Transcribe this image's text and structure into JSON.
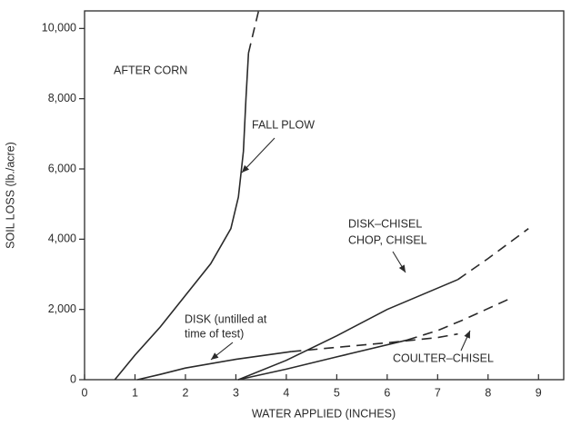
{
  "chart_data": {
    "type": "line",
    "x_label": "WATER APPLIED (INCHES)",
    "y_label": "SOIL LOSS (lb./acre)",
    "xlim": [
      0,
      9.5
    ],
    "ylim": [
      0,
      10500
    ],
    "xticks": [
      0,
      1,
      2,
      3,
      4,
      5,
      6,
      7,
      8,
      9
    ],
    "yticks": [
      0,
      {
        "value": 2000,
        "label": "2,000"
      },
      {
        "value": 4000,
        "label": "4,000"
      },
      {
        "value": 6000,
        "label": "6,000"
      },
      {
        "value": 8000,
        "label": "8,000"
      },
      {
        "value": 10000,
        "label": "10,000"
      }
    ],
    "color": "#2a2a2a",
    "series": [
      {
        "name": "FALL PLOW",
        "solid": {
          "x": [
            0.6,
            1.0,
            1.5,
            2.0,
            2.5,
            2.9,
            3.05,
            3.15,
            3.2,
            3.25
          ],
          "values": [
            0,
            700,
            1500,
            2400,
            3300,
            4300,
            5200,
            6500,
            8000,
            9300
          ]
        },
        "dashed": {
          "x": [
            3.25,
            3.35,
            3.45
          ],
          "values": [
            9300,
            9900,
            10500
          ]
        }
      },
      {
        "name": "DISK (untilled at time of test)",
        "solid": {
          "x": [
            1.05,
            1.5,
            2.0,
            3.0,
            4.1
          ],
          "values": [
            0,
            150,
            330,
            580,
            800
          ]
        },
        "dashed": {
          "x": [
            4.1,
            5.0,
            6.0,
            7.0,
            7.4
          ],
          "values": [
            800,
            920,
            1050,
            1200,
            1300
          ]
        }
      },
      {
        "name": "DISK–CHISEL CHOP, CHISEL",
        "solid": {
          "x": [
            3.05,
            4.0,
            5.0,
            6.0,
            7.4
          ],
          "values": [
            0,
            550,
            1250,
            2000,
            2850
          ]
        },
        "dashed": {
          "x": [
            7.4,
            8.0,
            8.8
          ],
          "values": [
            2850,
            3450,
            4300
          ]
        }
      },
      {
        "name": "COULTER–CHISEL",
        "solid": {
          "x": [
            3.05,
            4.0,
            5.0,
            6.4
          ],
          "values": [
            0,
            300,
            650,
            1130
          ]
        },
        "dashed": {
          "x": [
            6.4,
            7.0,
            7.5,
            8.5
          ],
          "values": [
            1130,
            1400,
            1700,
            2350
          ]
        }
      }
    ],
    "annotations": [
      "AFTER CORN",
      "FALL PLOW",
      "DISK (untilled at",
      "time of test)",
      "DISK–CHISEL",
      "CHOP, CHISEL",
      "COULTER–CHISEL"
    ]
  }
}
